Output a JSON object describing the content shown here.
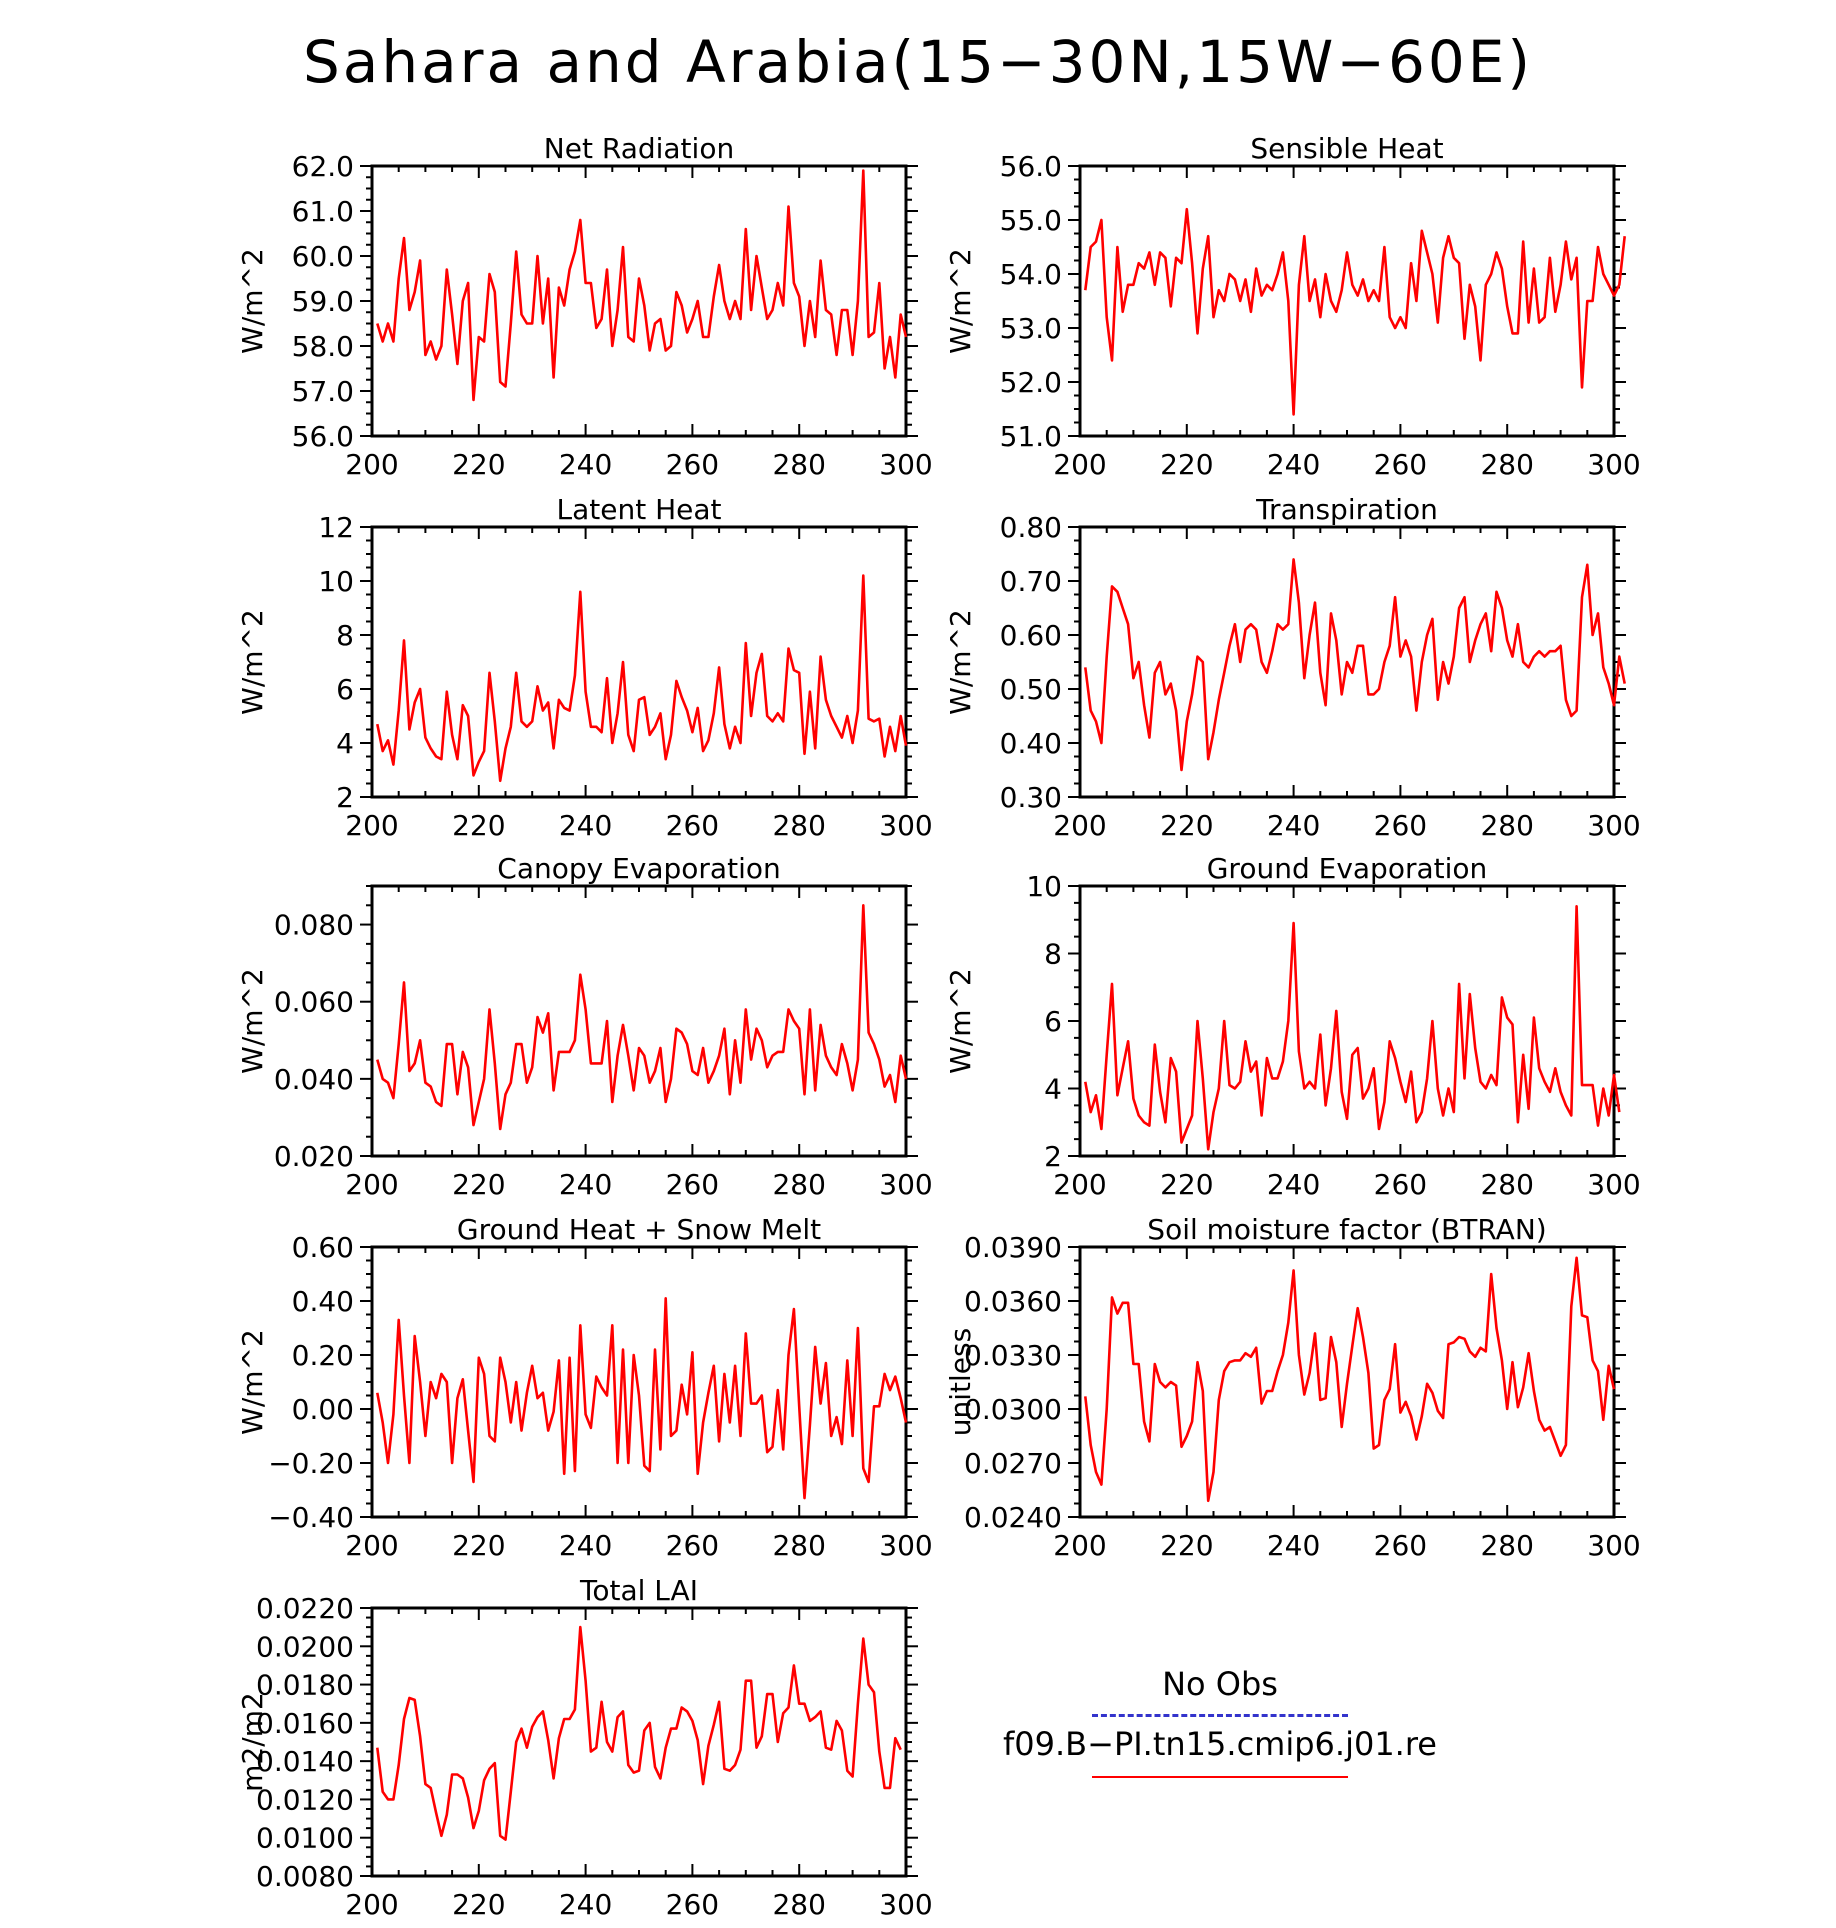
{
  "title": "Sahara and Arabia(15−30N,15W−60E)",
  "legend": {
    "items": [
      {
        "label": "No Obs",
        "color": "#3333cc",
        "style": "dashed"
      },
      {
        "label": "f09.B−PI.tn15.cmip6.j01.re",
        "color": "#ff0000",
        "style": "solid"
      }
    ]
  },
  "chart_data": [
    {
      "type": "line",
      "title": "Net Radiation",
      "ylabel": "W/m^2",
      "xlim": [
        200,
        300
      ],
      "ylim": [
        56.0,
        62.0
      ],
      "xticks": [
        "200",
        "220",
        "240",
        "260",
        "280",
        "300"
      ],
      "yticks": [
        "56.0",
        "57.0",
        "58.0",
        "59.0",
        "60.0",
        "61.0",
        "62.0"
      ],
      "x_start": 201,
      "x_step": 1,
      "color": "#ff0000",
      "values": [
        58.5,
        58.1,
        58.5,
        58.1,
        59.5,
        60.4,
        58.8,
        59.2,
        59.9,
        57.8,
        58.1,
        57.7,
        58.0,
        59.7,
        58.7,
        57.6,
        59.0,
        59.4,
        56.8,
        58.2,
        58.1,
        59.6,
        59.2,
        57.2,
        57.1,
        58.5,
        60.1,
        58.7,
        58.5,
        58.5,
        60.0,
        58.5,
        59.5,
        57.3,
        59.3,
        58.9,
        59.7,
        60.1,
        60.8,
        59.4,
        59.4,
        58.4,
        58.6,
        59.7,
        58.0,
        58.8,
        60.2,
        58.2,
        58.1,
        59.5,
        58.9,
        57.9,
        58.5,
        58.6,
        57.9,
        58.0,
        59.2,
        58.9,
        58.3,
        58.6,
        59.0,
        58.2,
        58.2,
        59.1,
        59.8,
        59.0,
        58.6,
        59.0,
        58.6,
        60.6,
        58.8,
        60.0,
        59.3,
        58.6,
        58.8,
        59.4,
        58.9,
        61.1,
        59.4,
        59.1,
        58.0,
        59.0,
        58.2,
        59.9,
        58.8,
        58.7,
        57.8,
        58.8,
        58.8,
        57.8,
        59.0,
        61.9,
        58.2,
        58.3,
        59.4,
        57.5,
        58.2,
        57.3,
        58.7,
        58.2
      ]
    },
    {
      "type": "line",
      "title": "Sensible Heat",
      "ylabel": "W/m^2",
      "xlim": [
        200,
        300
      ],
      "ylim": [
        51.0,
        56.0
      ],
      "xticks": [
        "200",
        "220",
        "240",
        "260",
        "280",
        "300"
      ],
      "yticks": [
        "51.0",
        "52.0",
        "53.0",
        "54.0",
        "55.0",
        "56.0"
      ],
      "x_start": 201,
      "x_step": 1,
      "color": "#ff0000",
      "values": [
        53.7,
        54.5,
        54.6,
        55.0,
        53.2,
        52.4,
        54.5,
        53.3,
        53.8,
        53.8,
        54.2,
        54.1,
        54.4,
        53.8,
        54.4,
        54.3,
        53.4,
        54.3,
        54.2,
        55.2,
        54.2,
        52.9,
        54.1,
        54.7,
        53.2,
        53.7,
        53.5,
        54.0,
        53.9,
        53.5,
        53.9,
        53.3,
        54.1,
        53.6,
        53.8,
        53.7,
        54.0,
        54.4,
        53.5,
        51.4,
        53.8,
        54.7,
        53.5,
        53.9,
        53.2,
        54.0,
        53.5,
        53.3,
        53.7,
        54.4,
        53.8,
        53.6,
        53.9,
        53.5,
        53.7,
        53.5,
        54.5,
        53.2,
        53.0,
        53.2,
        53.0,
        54.2,
        53.5,
        54.8,
        54.4,
        54.0,
        53.1,
        54.3,
        54.7,
        54.3,
        54.2,
        52.8,
        53.8,
        53.4,
        52.4,
        53.8,
        54.0,
        54.4,
        54.1,
        53.4,
        52.9,
        52.9,
        54.6,
        53.1,
        54.1,
        53.1,
        53.2,
        54.3,
        53.3,
        53.8,
        54.6,
        53.9,
        54.3,
        51.9,
        53.5,
        53.5,
        54.5,
        54.0,
        53.8,
        53.6,
        53.8,
        54.7
      ]
    },
    {
      "type": "line",
      "title": "Latent Heat",
      "ylabel": "W/m^2",
      "xlim": [
        200,
        300
      ],
      "ylim": [
        2,
        12
      ],
      "xticks": [
        "200",
        "220",
        "240",
        "260",
        "280",
        "300"
      ],
      "yticks": [
        "2",
        "4",
        "6",
        "8",
        "10",
        "12"
      ],
      "x_start": 201,
      "x_step": 1,
      "color": "#ff0000",
      "values": [
        4.7,
        3.7,
        4.1,
        3.2,
        5.2,
        7.8,
        4.5,
        5.5,
        6.0,
        4.2,
        3.8,
        3.5,
        3.4,
        5.9,
        4.3,
        3.4,
        5.4,
        5.0,
        2.8,
        3.3,
        3.7,
        6.6,
        4.8,
        2.6,
        3.8,
        4.6,
        6.6,
        4.8,
        4.6,
        4.8,
        6.1,
        5.2,
        5.5,
        3.8,
        5.6,
        5.3,
        5.2,
        6.5,
        9.6,
        5.9,
        4.6,
        4.6,
        4.4,
        6.4,
        4.0,
        5.1,
        7.0,
        4.3,
        3.7,
        5.6,
        5.7,
        4.3,
        4.6,
        5.1,
        3.4,
        4.3,
        6.3,
        5.7,
        5.2,
        4.4,
        5.3,
        3.7,
        4.1,
        5.1,
        6.8,
        4.7,
        3.8,
        4.6,
        4.0,
        7.7,
        5.0,
        6.6,
        7.3,
        5.0,
        4.8,
        5.1,
        4.8,
        7.5,
        6.7,
        6.6,
        3.6,
        5.9,
        3.8,
        7.2,
        5.6,
        5.0,
        4.6,
        4.2,
        5.0,
        4.0,
        5.2,
        10.2,
        4.9,
        4.8,
        4.9,
        3.5,
        4.6,
        3.7,
        5.0,
        3.9
      ]
    },
    {
      "type": "line",
      "title": "Transpiration",
      "ylabel": "W/m^2",
      "xlim": [
        200,
        300
      ],
      "ylim": [
        0.3,
        0.8
      ],
      "xticks": [
        "200",
        "220",
        "240",
        "260",
        "280",
        "300"
      ],
      "yticks": [
        "0.30",
        "0.40",
        "0.50",
        "0.60",
        "0.70",
        "0.80"
      ],
      "x_start": 201,
      "x_step": 1,
      "color": "#ff0000",
      "values": [
        0.54,
        0.46,
        0.44,
        0.4,
        0.56,
        0.69,
        0.68,
        0.65,
        0.62,
        0.52,
        0.55,
        0.47,
        0.41,
        0.53,
        0.55,
        0.49,
        0.51,
        0.46,
        0.35,
        0.44,
        0.49,
        0.56,
        0.55,
        0.37,
        0.42,
        0.48,
        0.53,
        0.58,
        0.62,
        0.55,
        0.61,
        0.62,
        0.61,
        0.55,
        0.53,
        0.57,
        0.62,
        0.61,
        0.62,
        0.74,
        0.66,
        0.52,
        0.6,
        0.66,
        0.53,
        0.47,
        0.64,
        0.59,
        0.49,
        0.55,
        0.53,
        0.58,
        0.58,
        0.49,
        0.49,
        0.5,
        0.55,
        0.58,
        0.67,
        0.56,
        0.59,
        0.56,
        0.46,
        0.55,
        0.6,
        0.63,
        0.48,
        0.55,
        0.51,
        0.56,
        0.65,
        0.67,
        0.55,
        0.59,
        0.62,
        0.64,
        0.57,
        0.68,
        0.65,
        0.59,
        0.56,
        0.62,
        0.55,
        0.54,
        0.56,
        0.57,
        0.56,
        0.57,
        0.57,
        0.58,
        0.48,
        0.45,
        0.46,
        0.67,
        0.73,
        0.6,
        0.64,
        0.54,
        0.51,
        0.47,
        0.56,
        0.51
      ]
    },
    {
      "type": "line",
      "title": "Canopy Evaporation",
      "ylabel": "W/m^2",
      "xlim": [
        200,
        300
      ],
      "ylim": [
        0.02,
        0.09
      ],
      "xticks": [
        "200",
        "220",
        "240",
        "260",
        "280",
        "300"
      ],
      "yticks": [
        "0.020",
        "0.040",
        "0.060",
        "0.080"
      ],
      "x_start": 201,
      "x_step": 1,
      "color": "#ff0000",
      "values": [
        0.045,
        0.04,
        0.039,
        0.035,
        0.049,
        0.065,
        0.042,
        0.044,
        0.05,
        0.039,
        0.038,
        0.034,
        0.033,
        0.049,
        0.049,
        0.036,
        0.047,
        0.043,
        0.028,
        0.034,
        0.04,
        0.058,
        0.044,
        0.027,
        0.036,
        0.039,
        0.049,
        0.049,
        0.039,
        0.043,
        0.056,
        0.052,
        0.057,
        0.037,
        0.047,
        0.047,
        0.047,
        0.05,
        0.067,
        0.058,
        0.044,
        0.044,
        0.044,
        0.055,
        0.034,
        0.046,
        0.054,
        0.046,
        0.037,
        0.048,
        0.046,
        0.039,
        0.042,
        0.048,
        0.034,
        0.04,
        0.053,
        0.052,
        0.049,
        0.042,
        0.041,
        0.048,
        0.039,
        0.042,
        0.046,
        0.053,
        0.036,
        0.05,
        0.039,
        0.058,
        0.045,
        0.053,
        0.05,
        0.043,
        0.046,
        0.047,
        0.047,
        0.058,
        0.055,
        0.053,
        0.036,
        0.058,
        0.037,
        0.054,
        0.046,
        0.043,
        0.041,
        0.049,
        0.044,
        0.037,
        0.045,
        0.085,
        0.052,
        0.049,
        0.045,
        0.038,
        0.041,
        0.034,
        0.046,
        0.04
      ]
    },
    {
      "type": "line",
      "title": "Ground Evaporation",
      "ylabel": "W/m^2",
      "xlim": [
        200,
        300
      ],
      "ylim": [
        2,
        10
      ],
      "xticks": [
        "200",
        "220",
        "240",
        "260",
        "280",
        "300"
      ],
      "yticks": [
        "2",
        "4",
        "6",
        "8",
        "10"
      ],
      "x_start": 201,
      "x_step": 1,
      "color": "#ff0000",
      "values": [
        4.2,
        3.3,
        3.8,
        2.8,
        5.0,
        7.1,
        3.8,
        4.6,
        5.4,
        3.7,
        3.2,
        3.0,
        2.9,
        5.3,
        3.9,
        3.0,
        4.9,
        4.5,
        2.4,
        2.8,
        3.2,
        6.0,
        4.3,
        2.2,
        3.3,
        4.0,
        6.0,
        4.1,
        4.0,
        4.2,
        5.4,
        4.5,
        4.8,
        3.2,
        4.9,
        4.3,
        4.3,
        4.8,
        6.0,
        8.9,
        5.1,
        4.0,
        4.2,
        4.0,
        5.6,
        3.5,
        4.6,
        6.3,
        3.9,
        3.1,
        5.0,
        5.2,
        3.7,
        4.0,
        4.6,
        2.8,
        3.6,
        5.4,
        4.9,
        4.2,
        3.6,
        4.5,
        3.0,
        3.3,
        4.3,
        6.0,
        4.0,
        3.2,
        4.0,
        3.3,
        7.1,
        4.3,
        6.8,
        5.2,
        4.2,
        4.0,
        4.4,
        4.1,
        6.7,
        6.1,
        5.9,
        3.0,
        5.0,
        3.4,
        6.1,
        4.6,
        4.2,
        3.9,
        4.6,
        3.9,
        3.5,
        3.2,
        9.4,
        4.1,
        4.1,
        4.1,
        2.9,
        4.0,
        3.2,
        4.4,
        3.3
      ]
    },
    {
      "type": "line",
      "title": "Ground Heat + Snow Melt",
      "ylabel": "W/m^2",
      "xlim": [
        200,
        300
      ],
      "ylim": [
        -0.4,
        0.6
      ],
      "xticks": [
        "200",
        "220",
        "240",
        "260",
        "280",
        "300"
      ],
      "yticks": [
        "−0.40",
        "−0.20",
        "0.00",
        "0.20",
        "0.40",
        "0.60"
      ],
      "x_start": 201,
      "x_step": 1,
      "color": "#ff0000",
      "values": [
        0.06,
        -0.05,
        -0.2,
        -0.02,
        0.33,
        0.05,
        -0.2,
        0.27,
        0.1,
        -0.1,
        0.1,
        0.04,
        0.13,
        0.1,
        -0.2,
        0.04,
        0.11,
        -0.08,
        -0.27,
        0.19,
        0.13,
        -0.1,
        -0.12,
        0.19,
        0.1,
        -0.05,
        0.1,
        -0.08,
        0.06,
        0.16,
        0.04,
        0.06,
        -0.08,
        -0.01,
        0.18,
        -0.24,
        0.19,
        -0.23,
        0.31,
        -0.02,
        -0.07,
        0.12,
        0.08,
        0.05,
        0.31,
        -0.2,
        0.22,
        -0.2,
        0.2,
        0.05,
        -0.21,
        -0.23,
        0.22,
        -0.15,
        0.41,
        -0.1,
        -0.08,
        0.09,
        -0.02,
        0.21,
        -0.24,
        -0.05,
        0.06,
        0.16,
        -0.12,
        0.13,
        -0.05,
        0.16,
        -0.1,
        0.28,
        0.02,
        0.02,
        0.05,
        -0.16,
        -0.14,
        0.07,
        -0.15,
        0.2,
        0.37,
        0.01,
        -0.33,
        -0.06,
        0.23,
        0.02,
        0.17,
        -0.1,
        -0.03,
        -0.13,
        0.18,
        -0.1,
        0.3,
        -0.22,
        -0.27,
        0.01,
        0.01,
        0.13,
        0.07,
        0.12,
        0.04,
        -0.05
      ]
    },
    {
      "type": "line",
      "title": "Soil moisture factor (BTRAN)",
      "ylabel": "unitless",
      "xlim": [
        200,
        300
      ],
      "ylim": [
        0.024,
        0.039
      ],
      "xticks": [
        "200",
        "220",
        "240",
        "260",
        "280",
        "300"
      ],
      "yticks": [
        "0.0240",
        "0.0270",
        "0.0300",
        "0.0330",
        "0.0360",
        "0.0390"
      ],
      "x_start": 201,
      "x_step": 1,
      "color": "#ff0000",
      "values": [
        0.0307,
        0.028,
        0.0265,
        0.0258,
        0.03,
        0.0362,
        0.0353,
        0.0359,
        0.0359,
        0.0325,
        0.0325,
        0.0293,
        0.0282,
        0.0325,
        0.0315,
        0.0312,
        0.0315,
        0.0313,
        0.0279,
        0.0285,
        0.0293,
        0.0326,
        0.031,
        0.0249,
        0.0265,
        0.0305,
        0.0321,
        0.0326,
        0.0327,
        0.0327,
        0.0331,
        0.0329,
        0.0334,
        0.0303,
        0.031,
        0.031,
        0.0321,
        0.033,
        0.0348,
        0.0377,
        0.033,
        0.0308,
        0.032,
        0.0342,
        0.0305,
        0.0306,
        0.034,
        0.0326,
        0.029,
        0.0314,
        0.0335,
        0.0356,
        0.034,
        0.032,
        0.0278,
        0.028,
        0.0305,
        0.0311,
        0.0336,
        0.0298,
        0.0304,
        0.0296,
        0.0283,
        0.0296,
        0.0314,
        0.0309,
        0.0299,
        0.0295,
        0.0336,
        0.0337,
        0.034,
        0.0339,
        0.0332,
        0.0329,
        0.0334,
        0.0332,
        0.0375,
        0.0345,
        0.0327,
        0.03,
        0.0326,
        0.0301,
        0.0312,
        0.0331,
        0.031,
        0.0294,
        0.0288,
        0.029,
        0.0282,
        0.0274,
        0.028,
        0.0357,
        0.0384,
        0.0352,
        0.0351,
        0.0327,
        0.0321,
        0.0294,
        0.0324,
        0.0311
      ]
    },
    {
      "type": "line",
      "title": "Total LAI",
      "ylabel": "m2/m2",
      "xlim": [
        200,
        300
      ],
      "ylim": [
        0.008,
        0.022
      ],
      "xticks": [
        "200",
        "220",
        "240",
        "260",
        "280",
        "300"
      ],
      "yticks": [
        "0.0080",
        "0.0100",
        "0.0120",
        "0.0140",
        "0.0160",
        "0.0180",
        "0.0200",
        "0.0220"
      ],
      "x_start": 201,
      "x_step": 1,
      "color": "#ff0000",
      "values": [
        0.0147,
        0.0124,
        0.012,
        0.012,
        0.0138,
        0.0162,
        0.0173,
        0.0172,
        0.0153,
        0.0128,
        0.0126,
        0.0113,
        0.0101,
        0.0112,
        0.0133,
        0.0133,
        0.0131,
        0.0121,
        0.0105,
        0.0114,
        0.013,
        0.0136,
        0.0139,
        0.0101,
        0.0099,
        0.0124,
        0.015,
        0.0157,
        0.0147,
        0.0158,
        0.0163,
        0.0166,
        0.0151,
        0.0131,
        0.0152,
        0.0162,
        0.0162,
        0.0167,
        0.021,
        0.0182,
        0.0145,
        0.0147,
        0.0171,
        0.015,
        0.0145,
        0.0163,
        0.0166,
        0.0138,
        0.0134,
        0.0135,
        0.0156,
        0.016,
        0.0137,
        0.0131,
        0.0147,
        0.0157,
        0.0157,
        0.0168,
        0.0166,
        0.0161,
        0.0151,
        0.0128,
        0.0148,
        0.0159,
        0.0171,
        0.0136,
        0.0135,
        0.0138,
        0.0146,
        0.0182,
        0.0182,
        0.0147,
        0.0153,
        0.0175,
        0.0175,
        0.015,
        0.0165,
        0.0168,
        0.019,
        0.017,
        0.017,
        0.0161,
        0.0163,
        0.0166,
        0.0147,
        0.0146,
        0.0161,
        0.0156,
        0.0135,
        0.0132,
        0.017,
        0.0204,
        0.018,
        0.0176,
        0.0145,
        0.0126,
        0.0126,
        0.0152,
        0.0146
      ]
    }
  ]
}
